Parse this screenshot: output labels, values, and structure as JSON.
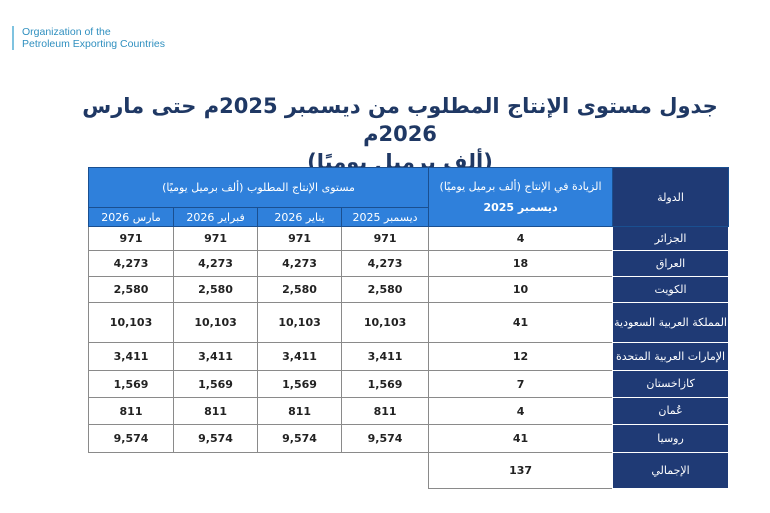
{
  "logo": {
    "line1": "Organization of the",
    "line2": "Petroleum Exporting Countries"
  },
  "title": {
    "line1": "جدول مستوى الإنتاج المطلوب من ديسمبر 2025م حتى مارس 2026م",
    "line2": "(ألف برميل يوميًا)"
  },
  "table": {
    "country_header": "الدولة",
    "increase_header": "الزيادة في الإنتاج (ألف برميل يوميًا)",
    "increase_sub": "ديسمبر 2025",
    "required_header": "مستوى الإنتاج المطلوب (ألف برميل يوميًا)",
    "months": [
      "ديسمبر 2025",
      "يناير 2026",
      "فبراير 2026",
      "مارس 2026"
    ],
    "rows": [
      {
        "country": "الجزائر",
        "increase": "4",
        "values": [
          "971",
          "971",
          "971",
          "971"
        ]
      },
      {
        "country": "العراق",
        "increase": "18",
        "values": [
          "4,273",
          "4,273",
          "4,273",
          "4,273"
        ]
      },
      {
        "country": "الكويت",
        "increase": "10",
        "values": [
          "2,580",
          "2,580",
          "2,580",
          "2,580"
        ]
      },
      {
        "country": "المملكة العربية السعودية",
        "increase": "41",
        "values": [
          "10,103",
          "10,103",
          "10,103",
          "10,103"
        ]
      },
      {
        "country": "الإمارات العربية المتحدة",
        "increase": "12",
        "values": [
          "3,411",
          "3,411",
          "3,411",
          "3,411"
        ]
      },
      {
        "country": "كازاخستان",
        "increase": "7",
        "values": [
          "1,569",
          "1,569",
          "1,569",
          "1,569"
        ]
      },
      {
        "country": "عُمان",
        "increase": "4",
        "values": [
          "811",
          "811",
          "811",
          "811"
        ]
      },
      {
        "country": "روسيا",
        "increase": "41",
        "values": [
          "9,574",
          "9,574",
          "9,574",
          "9,574"
        ]
      }
    ],
    "total": {
      "country": "الإجمالي",
      "increase": "137"
    }
  }
}
